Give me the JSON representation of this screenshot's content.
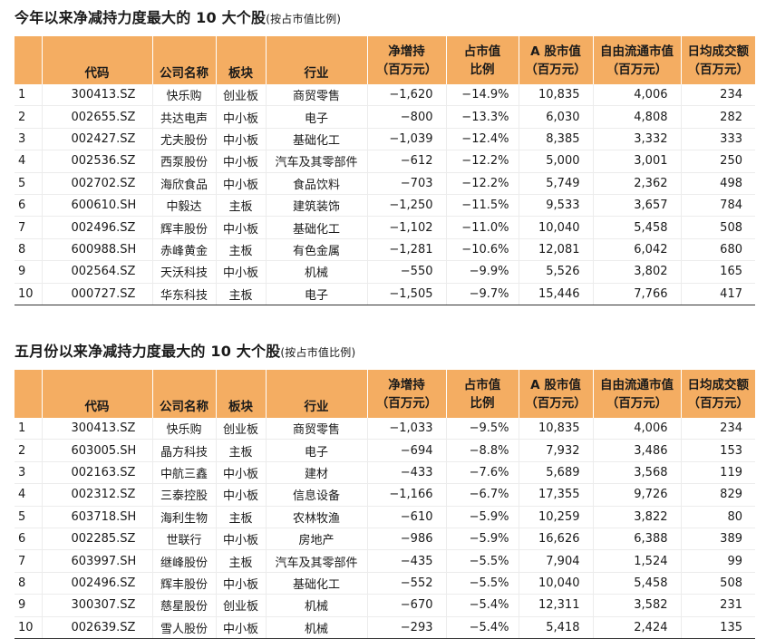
{
  "headers": {
    "code": "代码",
    "name": "公司名称",
    "board": "板块",
    "industry": "行业",
    "net_line1": "净增持",
    "net_line2": "（百万元）",
    "pct_line1": "占市值",
    "pct_line2": "比例",
    "mcap_line1": "A 股市值",
    "mcap_line2": "（百万元）",
    "free_line1": "自由流通市值",
    "free_line2": "（百万元）",
    "vol_line1": "日均成交额",
    "vol_line2": "（百万元）"
  },
  "table1": {
    "title": "今年以来净减持力度最大的 10  大个股",
    "note": "(按占市值比例)",
    "rows": [
      {
        "idx": "1",
        "code": "300413.SZ",
        "name": "快乐购",
        "board": "创业板",
        "industry": "商贸零售",
        "net": "−1,620",
        "pct": "−14.9%",
        "mcap": "10,835",
        "free": "4,006",
        "vol": "234"
      },
      {
        "idx": "2",
        "code": "002655.SZ",
        "name": "共达电声",
        "board": "中小板",
        "industry": "电子",
        "net": "−800",
        "pct": "−13.3%",
        "mcap": "6,030",
        "free": "4,808",
        "vol": "282"
      },
      {
        "idx": "3",
        "code": "002427.SZ",
        "name": "尤夫股份",
        "board": "中小板",
        "industry": "基础化工",
        "net": "−1,039",
        "pct": "−12.4%",
        "mcap": "8,385",
        "free": "3,332",
        "vol": "333"
      },
      {
        "idx": "4",
        "code": "002536.SZ",
        "name": "西泵股份",
        "board": "中小板",
        "industry": "汽车及其零部件",
        "net": "−612",
        "pct": "−12.2%",
        "mcap": "5,000",
        "free": "3,001",
        "vol": "250"
      },
      {
        "idx": "5",
        "code": "002702.SZ",
        "name": "海欣食品",
        "board": "中小板",
        "industry": "食品饮料",
        "net": "−703",
        "pct": "−12.2%",
        "mcap": "5,749",
        "free": "2,362",
        "vol": "498"
      },
      {
        "idx": "6",
        "code": "600610.SH",
        "name": "中毅达",
        "board": "主板",
        "industry": "建筑装饰",
        "net": "−1,250",
        "pct": "−11.5%",
        "mcap": "9,533",
        "free": "3,657",
        "vol": "784"
      },
      {
        "idx": "7",
        "code": "002496.SZ",
        "name": "辉丰股份",
        "board": "中小板",
        "industry": "基础化工",
        "net": "−1,102",
        "pct": "−11.0%",
        "mcap": "10,040",
        "free": "5,458",
        "vol": "508"
      },
      {
        "idx": "8",
        "code": "600988.SH",
        "name": "赤峰黄金",
        "board": "主板",
        "industry": "有色金属",
        "net": "−1,281",
        "pct": "−10.6%",
        "mcap": "12,081",
        "free": "6,042",
        "vol": "680"
      },
      {
        "idx": "9",
        "code": "002564.SZ",
        "name": "天沃科技",
        "board": "中小板",
        "industry": "机械",
        "net": "−550",
        "pct": "−9.9%",
        "mcap": "5,526",
        "free": "3,802",
        "vol": "165"
      },
      {
        "idx": "10",
        "code": "000727.SZ",
        "name": "华东科技",
        "board": "主板",
        "industry": "电子",
        "net": "−1,505",
        "pct": "−9.7%",
        "mcap": "15,446",
        "free": "7,766",
        "vol": "417"
      }
    ]
  },
  "table2": {
    "title": "五月份以来净减持力度最大的 10  大个股",
    "note": "(按占市值比例)",
    "rows": [
      {
        "idx": "1",
        "code": "300413.SZ",
        "name": "快乐购",
        "board": "创业板",
        "industry": "商贸零售",
        "net": "−1,033",
        "pct": "−9.5%",
        "mcap": "10,835",
        "free": "4,006",
        "vol": "234"
      },
      {
        "idx": "2",
        "code": "603005.SH",
        "name": "晶方科技",
        "board": "主板",
        "industry": "电子",
        "net": "−694",
        "pct": "−8.8%",
        "mcap": "7,932",
        "free": "3,486",
        "vol": "153"
      },
      {
        "idx": "3",
        "code": "002163.SZ",
        "name": "中航三鑫",
        "board": "中小板",
        "industry": "建材",
        "net": "−433",
        "pct": "−7.6%",
        "mcap": "5,689",
        "free": "3,568",
        "vol": "119"
      },
      {
        "idx": "4",
        "code": "002312.SZ",
        "name": "三泰控股",
        "board": "中小板",
        "industry": "信息设备",
        "net": "−1,166",
        "pct": "−6.7%",
        "mcap": "17,355",
        "free": "9,726",
        "vol": "829"
      },
      {
        "idx": "5",
        "code": "603718.SH",
        "name": "海利生物",
        "board": "主板",
        "industry": "农林牧渔",
        "net": "−610",
        "pct": "−5.9%",
        "mcap": "10,259",
        "free": "3,822",
        "vol": "80"
      },
      {
        "idx": "6",
        "code": "002285.SZ",
        "name": "世联行",
        "board": "中小板",
        "industry": "房地产",
        "net": "−986",
        "pct": "−5.9%",
        "mcap": "16,626",
        "free": "6,388",
        "vol": "389"
      },
      {
        "idx": "7",
        "code": "603997.SH",
        "name": "继峰股份",
        "board": "主板",
        "industry": "汽车及其零部件",
        "net": "−435",
        "pct": "−5.5%",
        "mcap": "7,904",
        "free": "1,524",
        "vol": "99"
      },
      {
        "idx": "8",
        "code": "002496.SZ",
        "name": "辉丰股份",
        "board": "中小板",
        "industry": "基础化工",
        "net": "−552",
        "pct": "−5.5%",
        "mcap": "10,040",
        "free": "5,458",
        "vol": "508"
      },
      {
        "idx": "9",
        "code": "300307.SZ",
        "name": "慈星股份",
        "board": "创业板",
        "industry": "机械",
        "net": "−670",
        "pct": "−5.4%",
        "mcap": "12,311",
        "free": "3,582",
        "vol": "231"
      },
      {
        "idx": "10",
        "code": "002639.SZ",
        "name": "雪人股份",
        "board": "中小板",
        "industry": "机械",
        "net": "−293",
        "pct": "−5.4%",
        "mcap": "5,418",
        "free": "2,424",
        "vol": "135"
      }
    ]
  },
  "colors": {
    "header_bg": "#f4ad62",
    "rule_dark": "#333333",
    "rule_light": "#ececec"
  }
}
